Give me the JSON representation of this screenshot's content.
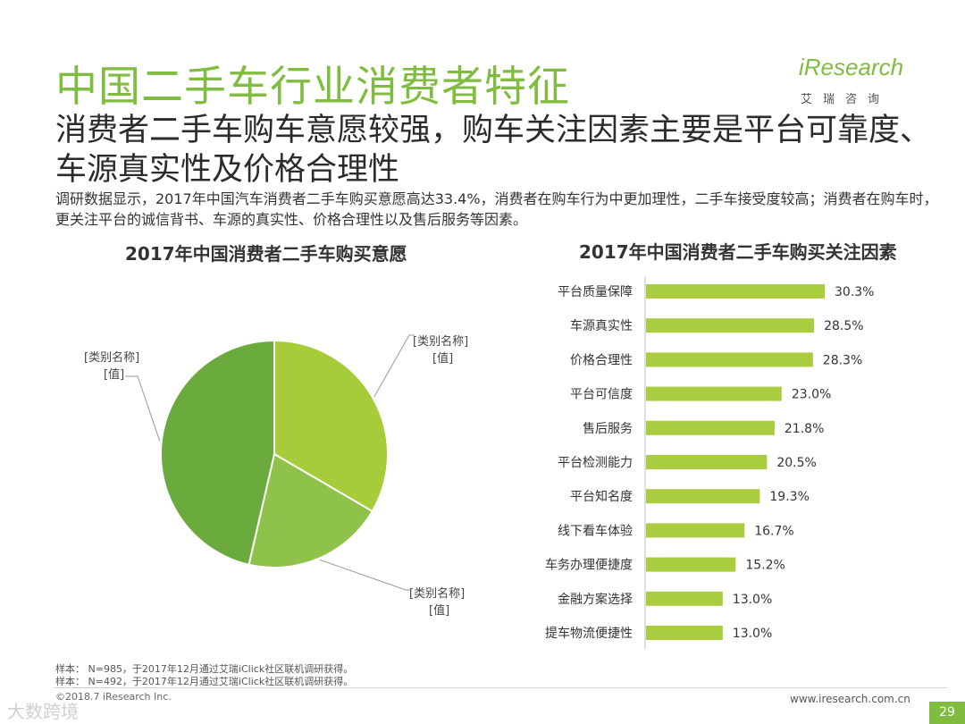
{
  "title": "中国二手车行业消费者特征",
  "subtitle": "消费者二手车购车意愿较强，购车关注因素主要是平台可靠度、车源真实性及价格合理性",
  "description": "调研数据显示，2017年中国汽车消费者二手车购买意愿高达33.4%，消费者在购车行为中更加理性，二手车接受度较高；消费者在购车时，更关注平台的诚信背书、车源的真实性、价格合理性以及售后服务等因素。",
  "logo": {
    "main": "iResearch",
    "sub": "艾瑞咨询"
  },
  "notes": [
    "样本： N=985，于2017年12月通过艾瑞iClick社区联机调研获得。",
    "样本： N=492，于2017年12月通过艾瑞iClick社区联机调研获得。"
  ],
  "copyright": "©2018.7 iResearch Inc.",
  "website": "www.iresearch.com.cn",
  "page_number": "29",
  "watermark": "大数跨境",
  "colors": {
    "accent": "#7fbc3f",
    "pie_light": "#a6cc3a",
    "pie_mid": "#8fc24a",
    "pie_dark": "#6bab3d",
    "bar": "#a9cd3e"
  },
  "chart_data": [
    {
      "type": "pie",
      "title": "2017年中国消费者二手车购买意愿",
      "slices": [
        {
          "label": "[类别名称]",
          "value_label": "[值]",
          "value": 33.4
        },
        {
          "label": "[类别名称]",
          "value_label": "[值]",
          "value": 20.2
        },
        {
          "label": "[类别名称]",
          "value_label": "[值]",
          "value": 46.4
        }
      ]
    },
    {
      "type": "bar",
      "orientation": "horizontal",
      "title": "2017年中国消费者二手车购买关注因素",
      "categories": [
        "平台质量保障",
        "车源真实性",
        "价格合理性",
        "平台可信度",
        "售后服务",
        "平台检测能力",
        "平台知名度",
        "线下看车体验",
        "车务办理便捷度",
        "金融方案选择",
        "提车物流便捷性"
      ],
      "values": [
        30.3,
        28.5,
        28.3,
        23.0,
        21.8,
        20.5,
        19.3,
        16.7,
        15.2,
        13.0,
        13.0
      ],
      "value_labels": [
        "30.3%",
        "28.5%",
        "28.3%",
        "23.0%",
        "21.8%",
        "20.5%",
        "19.3%",
        "16.7%",
        "15.2%",
        "13.0%",
        "13.0%"
      ]
    }
  ]
}
